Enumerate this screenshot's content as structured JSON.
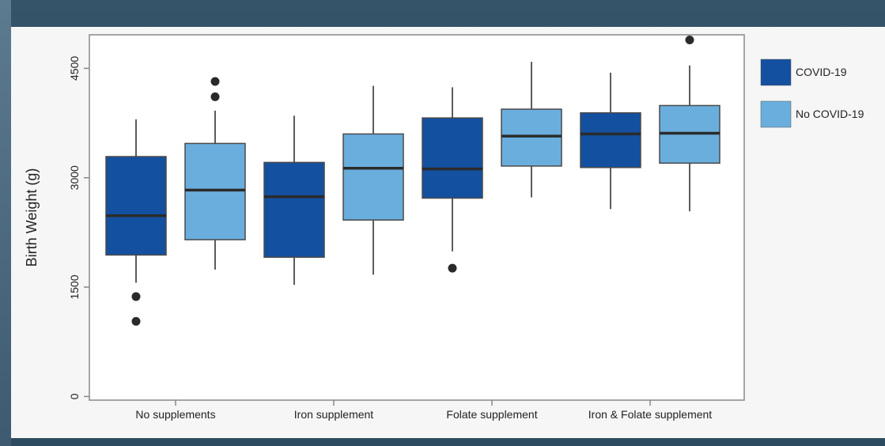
{
  "chart_data": {
    "type": "box",
    "categories": [
      "No supplements",
      "Iron supplement",
      "Folate supplement",
      "Iron & Folate supplement"
    ],
    "ylabel": "Birth Weight (g)",
    "xlabel": "",
    "ylim": [
      -50,
      4960
    ],
    "yticks": [
      0,
      1500,
      3000,
      4500
    ],
    "grid": false,
    "legend_position": "right",
    "series": [
      {
        "name": "COVID-19",
        "color": "#1450a0",
        "boxes": [
          {
            "q1": 1940,
            "median": 2480,
            "q3": 3290,
            "whisker_low": 1560,
            "whisker_high": 3800,
            "outliers": [
              1370,
              1030
            ]
          },
          {
            "q1": 1910,
            "median": 2740,
            "q3": 3210,
            "whisker_low": 1530,
            "whisker_high": 3850,
            "outliers": []
          },
          {
            "q1": 2720,
            "median": 3120,
            "q3": 3820,
            "whisker_low": 1990,
            "whisker_high": 4240,
            "outliers": [
              1760
            ]
          },
          {
            "q1": 3140,
            "median": 3600,
            "q3": 3890,
            "whisker_low": 2570,
            "whisker_high": 4440,
            "outliers": []
          }
        ]
      },
      {
        "name": "No COVID-19",
        "color": "#6aaedd",
        "boxes": [
          {
            "q1": 2150,
            "median": 2830,
            "q3": 3470,
            "whisker_low": 1740,
            "whisker_high": 3920,
            "outliers": [
              4320,
              4110
            ]
          },
          {
            "q1": 2420,
            "median": 3130,
            "q3": 3600,
            "whisker_low": 1670,
            "whisker_high": 4260,
            "outliers": []
          },
          {
            "q1": 3160,
            "median": 3570,
            "q3": 3940,
            "whisker_low": 2730,
            "whisker_high": 4590,
            "outliers": []
          },
          {
            "q1": 3200,
            "median": 3610,
            "q3": 3990,
            "whisker_low": 2540,
            "whisker_high": 4540,
            "outliers": [
              4890
            ]
          }
        ]
      }
    ]
  },
  "colors": {
    "box_stroke": "#4a4a4a",
    "median": "#2b2b2b",
    "whisker": "#4a4a4a",
    "outlier": "#2a2a2a",
    "axis": "#888888",
    "plot_bg": "#ffffff"
  }
}
